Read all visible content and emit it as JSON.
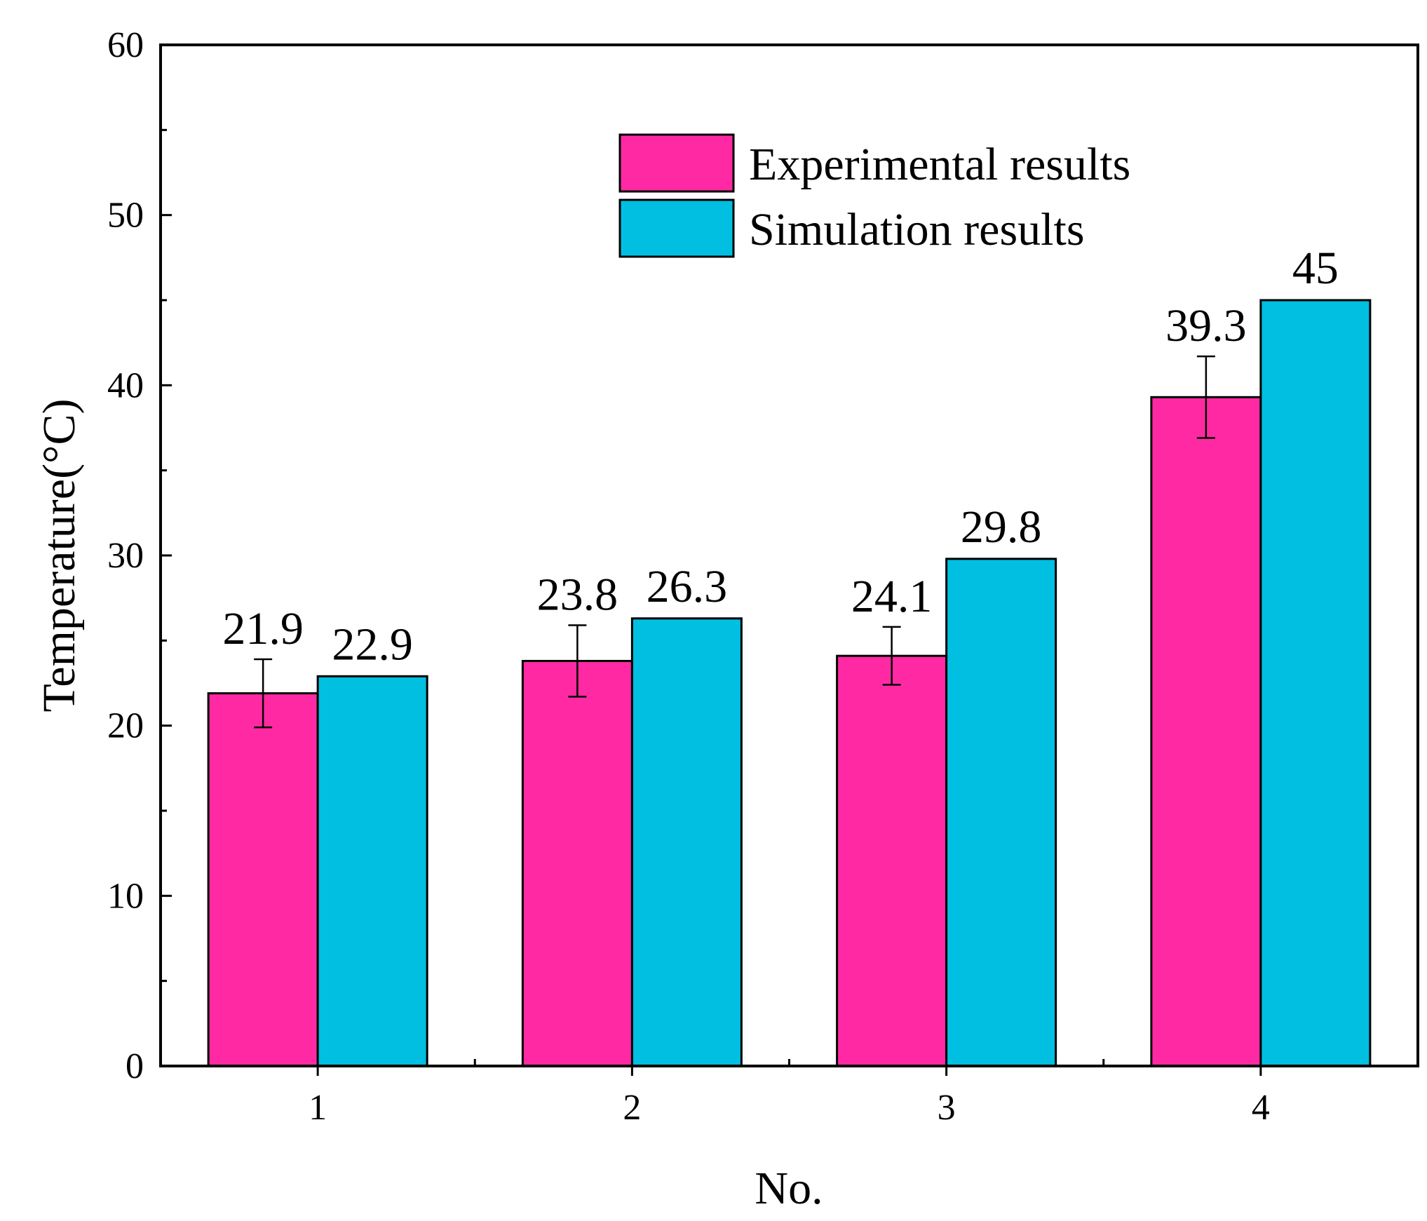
{
  "chart_data": {
    "type": "bar",
    "title": "",
    "xlabel": "No.",
    "ylabel": "Temperature(°C)",
    "categories": [
      "1",
      "2",
      "3",
      "4"
    ],
    "ylim": [
      0,
      60
    ],
    "yticks": [
      "0",
      "10",
      "20",
      "30",
      "40",
      "50",
      "60"
    ],
    "grid": false,
    "legend_position": "top-right",
    "series": [
      {
        "name": "Experimental results",
        "color": "#FF2AA3",
        "values": [
          21.9,
          23.8,
          24.1,
          39.3
        ],
        "labels": [
          "21.9",
          "23.8",
          "24.1",
          "39.3"
        ],
        "error": [
          2.0,
          2.1,
          1.7,
          2.4
        ]
      },
      {
        "name": "Simulation results",
        "color": "#00BFE1",
        "values": [
          22.9,
          26.3,
          29.8,
          45
        ],
        "labels": [
          "22.9",
          "26.3",
          "29.8",
          "45"
        ]
      }
    ]
  }
}
